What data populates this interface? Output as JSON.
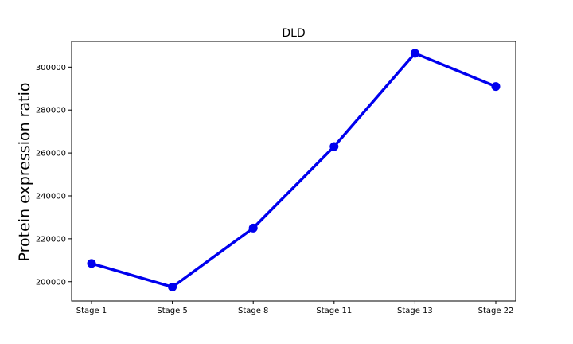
{
  "chart_data": {
    "type": "line",
    "title": "DLD",
    "xlabel": "",
    "ylabel": "Protein expression ratio",
    "categories": [
      "Stage 1",
      "Stage 5",
      "Stage 8",
      "Stage 11",
      "Stage 13",
      "Stage 22"
    ],
    "series": [
      {
        "values": [
          208500,
          197500,
          225000,
          263000,
          306500,
          291000
        ],
        "color": "#0000ee"
      }
    ],
    "yticks": [
      200000,
      220000,
      240000,
      260000,
      280000,
      300000
    ],
    "ytick_labels": [
      "200000",
      "220000",
      "240000",
      "260000",
      "280000",
      "300000"
    ],
    "ylim": [
      191000,
      312000
    ],
    "grid": false,
    "legend": "none"
  }
}
